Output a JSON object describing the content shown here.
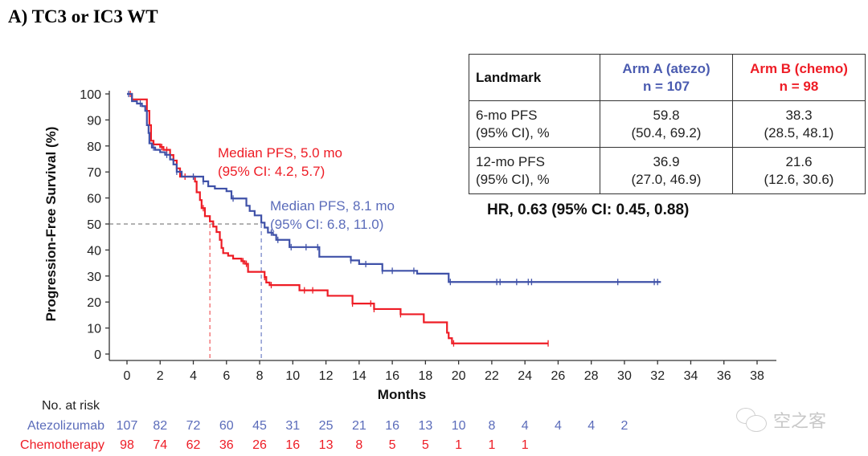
{
  "panel_title": "A) TC3 or IC3 WT",
  "table": {
    "headers": [
      {
        "line1": "Landmark",
        "line2": ""
      },
      {
        "line1": "Arm A (atezo)",
        "line2": "n = 107"
      },
      {
        "line1": "Arm B (chemo)",
        "line2": "n = 98"
      }
    ],
    "rows": [
      {
        "label1": "6-mo PFS",
        "label2": "(95% CI), %",
        "a_val": "59.8",
        "a_ci": "(50.4, 69.2)",
        "b_val": "38.3",
        "b_ci": "(28.5, 48.1)"
      },
      {
        "label1": "12-mo PFS",
        "label2": "(95% CI), %",
        "a_val": "36.9",
        "a_ci": "(27.0, 46.9)",
        "b_val": "21.6",
        "b_ci": "(12.6, 30.6)"
      }
    ]
  },
  "hr_text": "HR, 0.63 (95% CI: 0.45, 0.88)",
  "watermark": {
    "icon": "wechat-icon",
    "text": "空之客"
  },
  "colors": {
    "atezo": "#3f51a8",
    "chemo": "#ee1c25",
    "atezo_text": "#4a5bb0",
    "axis": "#333333",
    "ref_line": "#666666"
  },
  "chart_data": {
    "type": "line",
    "subtype": "kaplan-meier step",
    "title": "A) TC3 or IC3 WT",
    "xlabel": "Months",
    "ylabel": "Progression-Free Survival (%)",
    "xlim": [
      0,
      38
    ],
    "ylim": [
      0,
      100
    ],
    "x_ticks": [
      0,
      2,
      4,
      6,
      8,
      10,
      12,
      14,
      16,
      18,
      20,
      22,
      24,
      26,
      28,
      30,
      32,
      34,
      36,
      38
    ],
    "y_ticks": [
      0,
      10,
      20,
      30,
      40,
      50,
      60,
      70,
      80,
      90,
      100
    ],
    "grid": false,
    "series": [
      {
        "name": "Atezolizumab",
        "color": "#3f51a8",
        "steps": [
          [
            0,
            100
          ],
          [
            0.3,
            97.2
          ],
          [
            0.6,
            96.3
          ],
          [
            0.9,
            95.3
          ],
          [
            1.1,
            93.5
          ],
          [
            1.2,
            88
          ],
          [
            1.3,
            85
          ],
          [
            1.35,
            81
          ],
          [
            1.5,
            79.4
          ],
          [
            1.7,
            78.5
          ],
          [
            2.0,
            77.6
          ],
          [
            2.3,
            76.6
          ],
          [
            2.6,
            74.8
          ],
          [
            2.8,
            72.9
          ],
          [
            3.0,
            70.1
          ],
          [
            3.3,
            68.2
          ],
          [
            4.5,
            68.2
          ],
          [
            4.6,
            66.4
          ],
          [
            4.9,
            64.5
          ],
          [
            5.3,
            63.6
          ],
          [
            6.0,
            62.6
          ],
          [
            6.3,
            59.8
          ],
          [
            7.0,
            59.8
          ],
          [
            7.2,
            57
          ],
          [
            7.4,
            55
          ],
          [
            7.7,
            53.3
          ],
          [
            8.1,
            50.5
          ],
          [
            8.3,
            48.6
          ],
          [
            8.5,
            46.7
          ],
          [
            8.8,
            45.8
          ],
          [
            9.0,
            43.9
          ],
          [
            9.6,
            43.9
          ],
          [
            9.8,
            41.1
          ],
          [
            11.3,
            41.1
          ],
          [
            11.6,
            37.4
          ],
          [
            13.3,
            37.4
          ],
          [
            13.5,
            36.0
          ],
          [
            14.0,
            34.6
          ],
          [
            15.2,
            34.6
          ],
          [
            15.4,
            32.0
          ],
          [
            17.3,
            32.0
          ],
          [
            17.5,
            30.9
          ],
          [
            19.0,
            30.9
          ],
          [
            19.4,
            27.7
          ],
          [
            32.2,
            27.7
          ]
        ],
        "censor_x": [
          0.1,
          0.8,
          1.6,
          2.4,
          3.0,
          4.0,
          4.6,
          6.4,
          8.7,
          9.1,
          9.9,
          10.8,
          11.5,
          13.5,
          14.4,
          15.4,
          16.0,
          17.3,
          19.5,
          22.3,
          22.5,
          23.5,
          24.2,
          24.4,
          29.6,
          31.8,
          32.0
        ],
        "median": 8.1,
        "median_ci": [
          6.8,
          11.0
        ],
        "at_risk": [
          107,
          82,
          72,
          60,
          45,
          31,
          25,
          21,
          16,
          13,
          10,
          8,
          4,
          4,
          4,
          2
        ]
      },
      {
        "name": "Chemotherapy",
        "color": "#ee1c25",
        "steps": [
          [
            0,
            100
          ],
          [
            0.3,
            97.9
          ],
          [
            1.0,
            97.9
          ],
          [
            1.2,
            93.5
          ],
          [
            1.35,
            88
          ],
          [
            1.45,
            82
          ],
          [
            1.6,
            80.6
          ],
          [
            2.0,
            79.6
          ],
          [
            2.2,
            78.5
          ],
          [
            2.6,
            76.5
          ],
          [
            2.8,
            74.4
          ],
          [
            3.0,
            71.4
          ],
          [
            3.2,
            68.2
          ],
          [
            3.9,
            68.2
          ],
          [
            4.1,
            66.3
          ],
          [
            4.2,
            62.2
          ],
          [
            4.4,
            59.2
          ],
          [
            4.5,
            56.1
          ],
          [
            4.7,
            53.0
          ],
          [
            5.0,
            51.0
          ],
          [
            5.2,
            49.0
          ],
          [
            5.4,
            46.9
          ],
          [
            5.6,
            43.9
          ],
          [
            5.7,
            40.8
          ],
          [
            5.8,
            38.8
          ],
          [
            6.1,
            37.8
          ],
          [
            6.4,
            36.7
          ],
          [
            6.9,
            35.7
          ],
          [
            7.1,
            34.7
          ],
          [
            7.3,
            31.6
          ],
          [
            8.1,
            31.6
          ],
          [
            8.3,
            29.6
          ],
          [
            8.4,
            27.5
          ],
          [
            8.6,
            26.5
          ],
          [
            10.3,
            26.5
          ],
          [
            10.4,
            24.5
          ],
          [
            11.8,
            24.5
          ],
          [
            12.1,
            22.4
          ],
          [
            13.2,
            22.4
          ],
          [
            13.6,
            19.4
          ],
          [
            14.6,
            19.4
          ],
          [
            14.9,
            17.3
          ],
          [
            16.2,
            17.3
          ],
          [
            16.5,
            15.3
          ],
          [
            17.5,
            15.3
          ],
          [
            17.9,
            12.2
          ],
          [
            19.0,
            12.2
          ],
          [
            19.3,
            8.2
          ],
          [
            19.4,
            6.1
          ],
          [
            19.6,
            4.1
          ],
          [
            25.4,
            4.1
          ]
        ],
        "censor_x": [
          0.2,
          2.1,
          2.4,
          3.5,
          4.6,
          7.0,
          7.2,
          8.3,
          8.7,
          10.7,
          11.2,
          13.6,
          14.7,
          14.9,
          16.5,
          19.7,
          25.4
        ],
        "median": 5.0,
        "median_ci": [
          4.2,
          5.7
        ],
        "at_risk": [
          98,
          74,
          62,
          36,
          26,
          16,
          13,
          8,
          5,
          5,
          1,
          1,
          1
        ]
      }
    ],
    "reference_lines": {
      "horizontal_y": 50,
      "vertical_x": [
        5.0,
        8.1
      ]
    },
    "annotations": [
      {
        "series": "Chemotherapy",
        "line1": "Median PFS, 5.0 mo",
        "line2": "(95% CI: 4.2, 5.7)"
      },
      {
        "series": "Atezolizumab",
        "line1": "Median PFS, 8.1 mo",
        "line2": "(95% CI: 6.8, 11.0)"
      }
    ],
    "risk_table": {
      "title": "No. at risk",
      "times": [
        0,
        2,
        4,
        6,
        8,
        10,
        12,
        14,
        16,
        18,
        20,
        22,
        24,
        26,
        28,
        30
      ],
      "rows": [
        {
          "label": "Atezolizumab",
          "values": [
            107,
            82,
            72,
            60,
            45,
            31,
            25,
            21,
            16,
            13,
            10,
            8,
            4,
            4,
            4,
            2
          ]
        },
        {
          "label": "Chemotherapy",
          "values": [
            98,
            74,
            62,
            36,
            26,
            16,
            13,
            8,
            5,
            5,
            1,
            1,
            1
          ]
        }
      ]
    },
    "legend": "none"
  }
}
